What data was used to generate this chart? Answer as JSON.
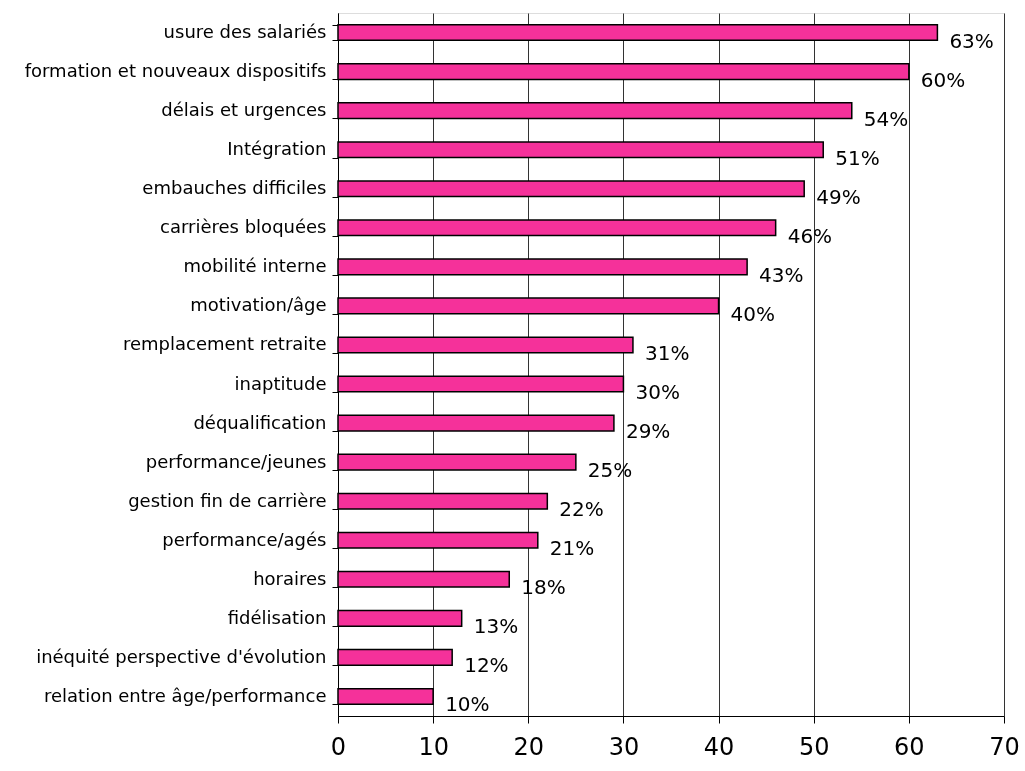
{
  "chart_data": {
    "type": "bar",
    "orientation": "horizontal",
    "categories": [
      "usure des salariés",
      "formation et nouveaux dispositifs",
      "délais et urgences",
      "Intégration",
      "embauches difficiles",
      "carrières bloquées",
      "mobilité interne",
      "motivation/âge",
      "remplacement retraite",
      "inaptitude",
      "déqualification",
      "performance/jeunes",
      "gestion fin de carrière",
      "performance/agés",
      "horaires",
      "fidélisation",
      "inéquité perspective d'évolution",
      "relation entre âge/performance"
    ],
    "values": [
      63,
      60,
      54,
      51,
      49,
      46,
      43,
      40,
      31,
      30,
      29,
      25,
      22,
      21,
      18,
      13,
      12,
      10
    ],
    "value_labels": [
      "63%",
      "60%",
      "54%",
      "51%",
      "49%",
      "46%",
      "43%",
      "40%",
      "31%",
      "30%",
      "29%",
      "25%",
      "22%",
      "21%",
      "18%",
      "13%",
      "12%",
      "10%"
    ],
    "color": "#f5319a",
    "xlim": [
      0,
      70
    ],
    "xticks": [
      0,
      10,
      20,
      30,
      40,
      50,
      60,
      70
    ],
    "grid": "x"
  }
}
